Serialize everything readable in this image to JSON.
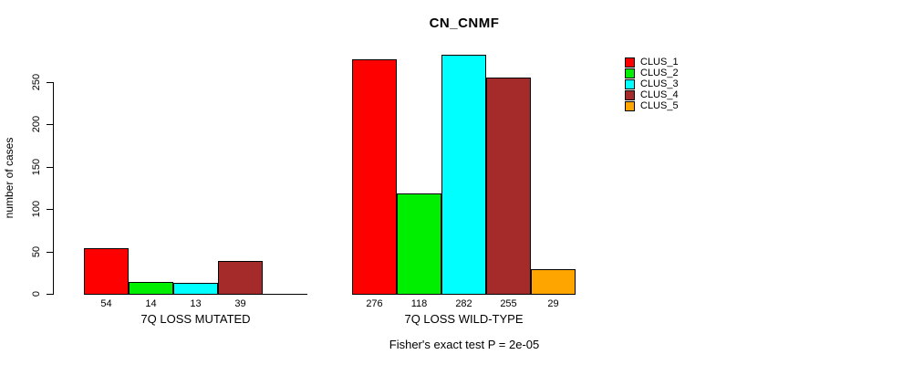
{
  "chart_data": {
    "type": "bar",
    "title": "CN_CNMF",
    "ylabel": "number of cases",
    "xlabel": "",
    "ylim": [
      0,
      250
    ],
    "grid": false,
    "y_ticks": [
      "0",
      "50",
      "100",
      "150",
      "200",
      "250"
    ],
    "categories": [
      "CLUS_1",
      "CLUS_2",
      "CLUS_3",
      "CLUS_4",
      "CLUS_5"
    ],
    "colors": [
      "#FF0000",
      "#00EE00",
      "#00FFFF",
      "#A52A2A",
      "#FFA500"
    ],
    "groups": [
      {
        "label": "7Q LOSS MUTATED",
        "values": [
          54,
          14,
          13,
          39,
          0
        ],
        "bar_labels": [
          "54",
          "14",
          "13",
          "39",
          ""
        ]
      },
      {
        "label": "7Q LOSS WILD-TYPE",
        "values": [
          276,
          118,
          282,
          255,
          29
        ],
        "bar_labels": [
          "276",
          "118",
          "282",
          "255",
          "29"
        ]
      }
    ],
    "legend": {
      "position": "right",
      "entries": [
        {
          "label": "CLUS_1",
          "color": "#FF0000"
        },
        {
          "label": "CLUS_2",
          "color": "#00EE00"
        },
        {
          "label": "CLUS_3",
          "color": "#00FFFF"
        },
        {
          "label": "CLUS_4",
          "color": "#A52A2A"
        },
        {
          "label": "CLUS_5",
          "color": "#FFA500"
        }
      ]
    },
    "footnote": "Fisher's exact test P = 2e-05"
  }
}
